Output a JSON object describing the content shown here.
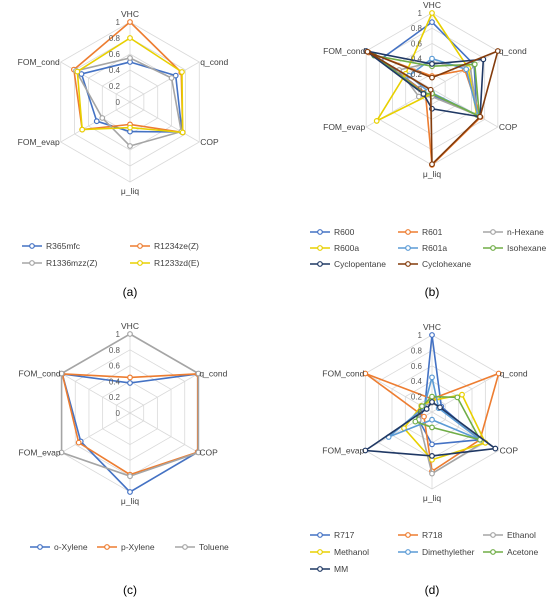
{
  "chart_data": [
    {
      "type": "radar",
      "caption": "(a)",
      "axes": [
        "VHC",
        "q_cond",
        "COP",
        "μ_liq",
        "FOM_evap",
        "FOM_cond"
      ],
      "ticks": [
        "1",
        "0.8",
        "0.6",
        "0.4",
        "0.2",
        "0"
      ],
      "range": [
        0,
        1
      ],
      "grid": true,
      "legend_position": "bottom",
      "series": [
        {
          "name": "R365mfc",
          "color": "#4472C4",
          "values": [
            0.5,
            0.66,
            0.75,
            0.37,
            0.48,
            0.7
          ]
        },
        {
          "name": "R1234ze(Z)",
          "color": "#ED7D31",
          "values": [
            1.0,
            0.74,
            0.76,
            0.28,
            0.69,
            0.81
          ]
        },
        {
          "name": "R1336mzz(Z)",
          "color": "#A5A5A5",
          "values": [
            0.55,
            0.6,
            0.74,
            0.55,
            0.4,
            0.78
          ]
        },
        {
          "name": "R1233zd(E)",
          "color": "#E8D000",
          "values": [
            0.8,
            0.75,
            0.76,
            0.32,
            0.69,
            0.76
          ]
        }
      ]
    },
    {
      "type": "radar",
      "caption": "(b)",
      "axes": [
        "VHC",
        "q_cond",
        "COP",
        "μ_liq",
        "FOM_evap",
        "FOM_cond"
      ],
      "ticks": [
        "1",
        "0.8",
        "0.6",
        "0.4",
        "0.2",
        "0"
      ],
      "range": [
        0,
        1
      ],
      "grid": true,
      "legend_position": "bottom",
      "series": [
        {
          "name": "R600",
          "color": "#4472C4",
          "values": [
            0.88,
            0.64,
            0.68,
            0.08,
            0.1,
            0.78
          ]
        },
        {
          "name": "R601",
          "color": "#ED7D31",
          "values": [
            0.17,
            0.5,
            0.74,
            1.0,
            0.1,
            0.96
          ]
        },
        {
          "name": "n-Hexane",
          "color": "#A5A5A5",
          "values": [
            0.35,
            0.58,
            0.69,
            0.1,
            0.2,
            0.5
          ]
        },
        {
          "name": "R600a",
          "color": "#E8D000",
          "values": [
            1.0,
            0.55,
            0.68,
            0.06,
            0.84,
            0.4
          ]
        },
        {
          "name": "R601a",
          "color": "#5B9BD5",
          "values": [
            0.4,
            0.52,
            0.7,
            0.05,
            0.06,
            0.35
          ]
        },
        {
          "name": "Isohexane",
          "color": "#70AD47",
          "values": [
            0.3,
            0.65,
            0.72,
            0.06,
            0.12,
            0.88
          ]
        },
        {
          "name": "Cyclopentane",
          "color": "#1F3864",
          "values": [
            0.33,
            0.78,
            0.73,
            0.26,
            0.13,
            1.0
          ]
        },
        {
          "name": "Cyclohexane",
          "color": "#843C0C",
          "values": [
            0.15,
            1.0,
            0.73,
            0.99,
            0.02,
            0.98
          ]
        }
      ]
    },
    {
      "type": "radar",
      "caption": "(c)",
      "axes": [
        "VHC",
        "q_cond",
        "COP",
        "μ_liq",
        "FOM_evap",
        "FOM_cond"
      ],
      "ticks": [
        "1",
        "0.8",
        "0.6",
        "0.4",
        "0.2",
        "0"
      ],
      "range": [
        0,
        1
      ],
      "grid": true,
      "legend_position": "bottom",
      "series": [
        {
          "name": "o-Xylene",
          "color": "#4472C4",
          "values": [
            0.38,
            0.99,
            0.99,
            1.0,
            0.72,
            0.99
          ]
        },
        {
          "name": "p-Xylene",
          "color": "#ED7D31",
          "values": [
            0.45,
            0.99,
            0.99,
            0.78,
            0.75,
            0.99
          ]
        },
        {
          "name": "Toluene",
          "color": "#A5A5A5",
          "values": [
            1.0,
            1.0,
            1.0,
            0.8,
            1.0,
            1.0
          ]
        }
      ]
    },
    {
      "type": "radar",
      "caption": "(d)",
      "axes": [
        "VHC",
        "q_cond",
        "COP",
        "μ_liq",
        "FOM_evap",
        "FOM_cond"
      ],
      "ticks": [
        "1",
        "0.8",
        "0.6",
        "0.4",
        "0.2",
        "0"
      ],
      "range": [
        0,
        1
      ],
      "grid": true,
      "legend_position": "bottom",
      "series": [
        {
          "name": "R717",
          "color": "#4472C4",
          "values": [
            1.0,
            0.14,
            0.72,
            0.42,
            0.2,
            0.11
          ]
        },
        {
          "name": "R718",
          "color": "#ED7D31",
          "values": [
            0.17,
            1.0,
            0.72,
            0.77,
            0.12,
            1.0
          ]
        },
        {
          "name": "Ethanol",
          "color": "#A5A5A5",
          "values": [
            0.12,
            0.12,
            0.78,
            0.8,
            0.2,
            0.14
          ]
        },
        {
          "name": "Methanol",
          "color": "#E8D000",
          "values": [
            0.15,
            0.45,
            0.8,
            0.62,
            0.42,
            0.16
          ]
        },
        {
          "name": "Dimethylether",
          "color": "#5B9BD5",
          "values": [
            0.45,
            0.1,
            0.72,
            0.1,
            0.65,
            0.12
          ]
        },
        {
          "name": "Acetone",
          "color": "#70AD47",
          "values": [
            0.2,
            0.38,
            0.72,
            0.2,
            0.25,
            0.15
          ]
        },
        {
          "name": "MM",
          "color": "#1F3864",
          "values": [
            0.13,
            0.12,
            0.95,
            0.57,
            1.0,
            0.08
          ]
        }
      ]
    }
  ]
}
